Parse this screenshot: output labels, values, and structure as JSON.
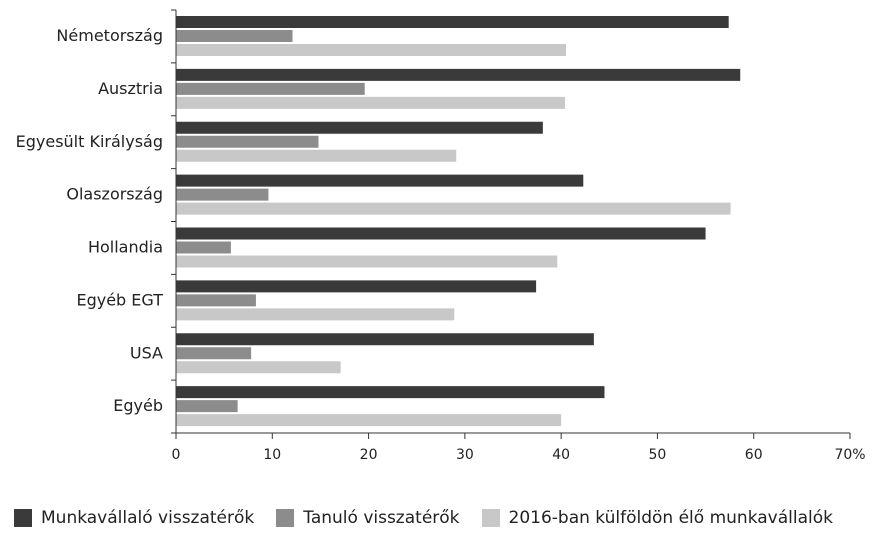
{
  "chart_data": {
    "type": "bar",
    "orientation": "horizontal",
    "title": "",
    "xlabel": "",
    "ylabel": "",
    "categories": [
      "Németország",
      "Ausztria",
      "Egyesült Királyság",
      "Olaszország",
      "Hollandia",
      "Egyéb EGT",
      "USA",
      "Egyéb"
    ],
    "series": [
      {
        "name": "Munkavállaló visszatérők",
        "color": "#3a3a3a",
        "values": [
          57.4,
          58.6,
          38.1,
          42.3,
          55.0,
          37.4,
          43.4,
          44.5
        ]
      },
      {
        "name": "Tanuló visszatérők",
        "color": "#8c8c8c",
        "values": [
          12.1,
          19.6,
          14.8,
          9.6,
          5.7,
          8.3,
          7.8,
          6.4
        ]
      },
      {
        "name": "2016-ban külföldön élő munkavállalók",
        "color": "#c8c8c8",
        "values": [
          40.5,
          40.4,
          29.1,
          57.6,
          39.6,
          28.9,
          17.1,
          40.0
        ]
      }
    ],
    "xlim": [
      0,
      70
    ],
    "xticks": [
      0,
      10,
      20,
      30,
      40,
      50,
      60,
      70
    ],
    "xtick_labels": [
      "0",
      "10",
      "20",
      "30",
      "40",
      "50",
      "60",
      "70%"
    ],
    "grid": false,
    "legend_position": "bottom"
  }
}
